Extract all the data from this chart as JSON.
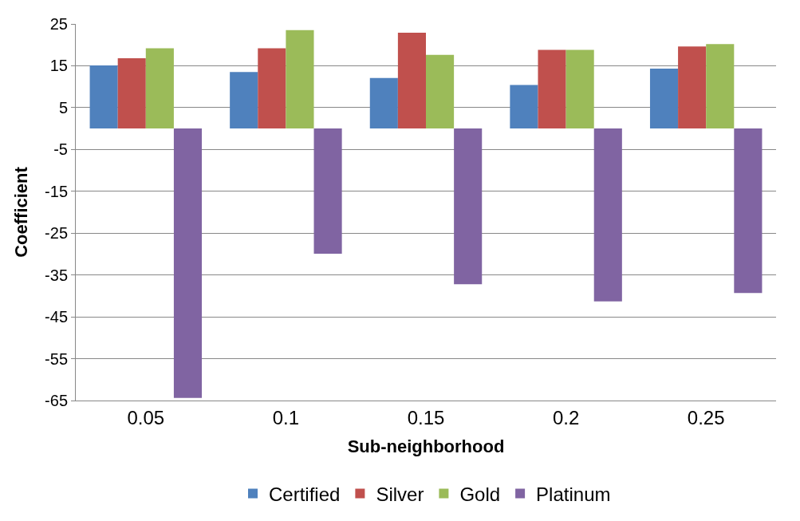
{
  "chart_data": {
    "type": "bar",
    "xlabel": "Sub-neighborhood",
    "ylabel": "Coefficient",
    "categories": [
      "0.05",
      "0.1",
      "0.15",
      "0.2",
      "0.25"
    ],
    "series": [
      {
        "name": "Certified",
        "color": "#4f81bd",
        "values": [
          15.1,
          13.5,
          12.1,
          10.4,
          14.3
        ]
      },
      {
        "name": "Silver",
        "color": "#c0504d",
        "values": [
          16.8,
          19.2,
          22.9,
          18.8,
          19.6
        ]
      },
      {
        "name": "Gold",
        "color": "#9bbb59",
        "values": [
          19.2,
          23.5,
          17.6,
          18.8,
          20.2
        ]
      },
      {
        "name": "Platinum",
        "color": "#8064a2",
        "values": [
          -64.4,
          -29.9,
          -37.2,
          -41.3,
          -39.3
        ]
      }
    ],
    "ylim": [
      -65,
      25
    ],
    "yticks": [
      25,
      15,
      5,
      -5,
      -15,
      -25,
      -35,
      -45,
      -55,
      -65
    ],
    "grid": "y",
    "legend": "bottom"
  }
}
